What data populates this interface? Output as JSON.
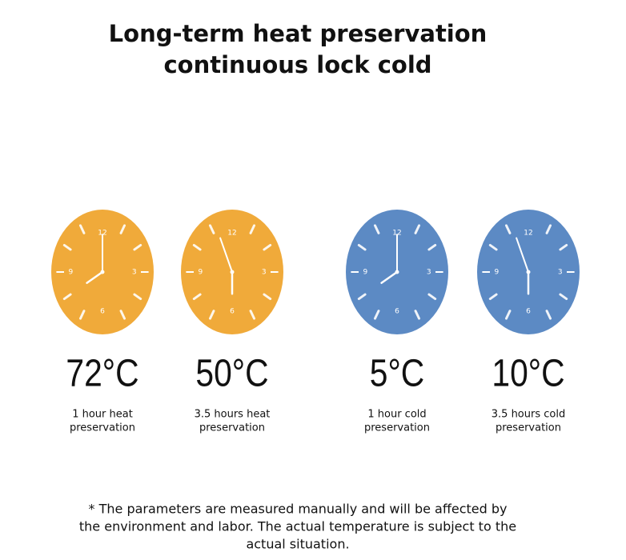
{
  "header": {
    "title_lines": [
      "Long-term heat preservation",
      "continuous lock cold"
    ]
  },
  "dial_labels": [
    "12",
    "3",
    "6",
    "9"
  ],
  "items": [
    {
      "temperature": "72°C",
      "caption_lines": [
        "1 hour heat",
        "preservation"
      ],
      "theme": "heat"
    },
    {
      "temperature": "50°C",
      "caption_lines": [
        "3.5 hours heat",
        "preservation"
      ],
      "theme": "heat"
    },
    {
      "temperature": "5°C",
      "caption_lines": [
        "1 hour cold",
        "preservation"
      ],
      "theme": "cold"
    },
    {
      "temperature": "10°C",
      "caption_lines": [
        "3.5 hours cold",
        "preservation"
      ],
      "theme": "cold"
    }
  ],
  "footnote_lines": [
    "* The parameters are measured manually and will be affected by",
    "the environment and labor. The actual temperature is subject to the",
    "actual situation."
  ]
}
